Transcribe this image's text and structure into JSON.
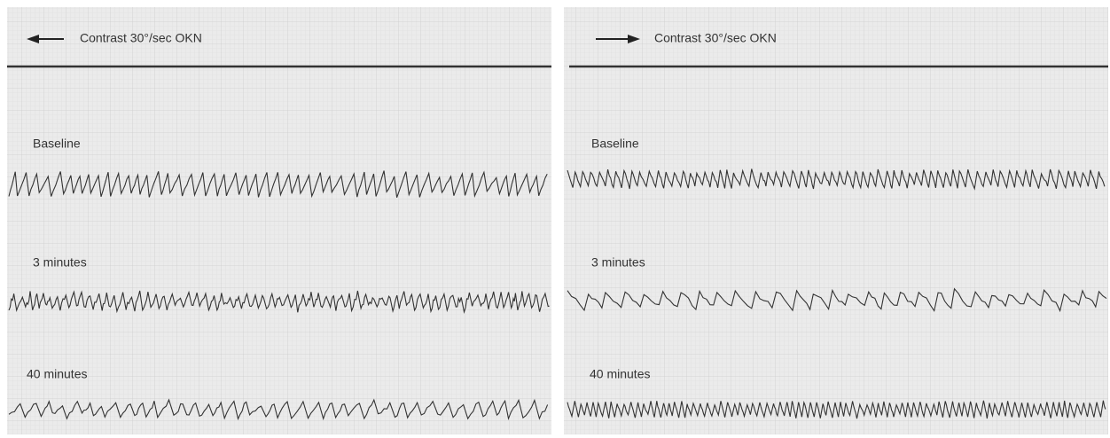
{
  "panels": [
    {
      "header": "Contrast 30°/sec  OKN",
      "traces": [
        "Baseline",
        "3 minutes",
        "40 minutes"
      ]
    },
    {
      "header": "Contrast 30°/sec  OKN",
      "traces": [
        "Baseline",
        "3 minutes",
        "40 minutes"
      ]
    }
  ]
}
